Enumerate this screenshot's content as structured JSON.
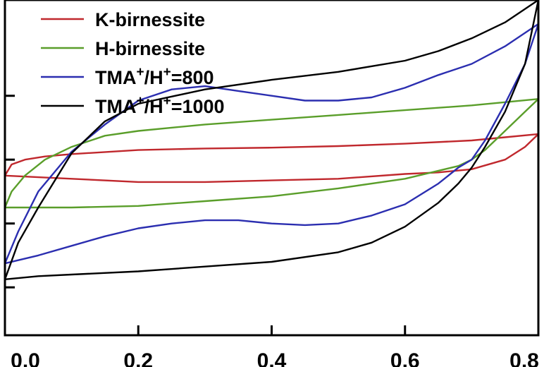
{
  "chart_data": {
    "type": "line",
    "title": "",
    "xlabel": "",
    "ylabel": "",
    "xlim": [
      0.0,
      0.8
    ],
    "ylim": [
      -1.1,
      1.0
    ],
    "x_ticks": [
      0.0,
      0.2,
      0.4,
      0.6,
      0.8
    ],
    "x_tick_labels": [
      "0.0",
      "0.2",
      "0.4",
      "0.6",
      "0.8"
    ],
    "y_ticks": [
      -0.8,
      -0.4,
      0.0,
      0.4
    ],
    "grid": false,
    "legend_position": "top-left",
    "series": [
      {
        "name": "K-birnessite",
        "name_parts": [
          "K-birnessite"
        ],
        "color": "#c0282d",
        "upper": [
          [
            0.0,
            -0.1
          ],
          [
            0.01,
            -0.03
          ],
          [
            0.03,
            0.0
          ],
          [
            0.06,
            0.02
          ],
          [
            0.1,
            0.035
          ],
          [
            0.2,
            0.06
          ],
          [
            0.3,
            0.07
          ],
          [
            0.4,
            0.075
          ],
          [
            0.5,
            0.085
          ],
          [
            0.6,
            0.1
          ],
          [
            0.7,
            0.12
          ],
          [
            0.75,
            0.14
          ],
          [
            0.8,
            0.16
          ]
        ],
        "lower": [
          [
            0.8,
            0.16
          ],
          [
            0.78,
            0.08
          ],
          [
            0.75,
            0.0
          ],
          [
            0.7,
            -0.06
          ],
          [
            0.65,
            -0.08
          ],
          [
            0.6,
            -0.09
          ],
          [
            0.5,
            -0.12
          ],
          [
            0.4,
            -0.13
          ],
          [
            0.3,
            -0.14
          ],
          [
            0.2,
            -0.14
          ],
          [
            0.1,
            -0.12
          ],
          [
            0.05,
            -0.11
          ],
          [
            0.0,
            -0.1
          ]
        ]
      },
      {
        "name": "H-birnessite",
        "name_parts": [
          "H-birnessite"
        ],
        "color": "#5a9e2a",
        "upper": [
          [
            0.0,
            -0.3
          ],
          [
            0.01,
            -0.2
          ],
          [
            0.03,
            -0.1
          ],
          [
            0.06,
            0.0
          ],
          [
            0.1,
            0.08
          ],
          [
            0.15,
            0.15
          ],
          [
            0.2,
            0.18
          ],
          [
            0.3,
            0.22
          ],
          [
            0.4,
            0.25
          ],
          [
            0.5,
            0.28
          ],
          [
            0.6,
            0.31
          ],
          [
            0.7,
            0.34
          ],
          [
            0.75,
            0.36
          ],
          [
            0.8,
            0.38
          ]
        ],
        "lower": [
          [
            0.8,
            0.38
          ],
          [
            0.78,
            0.3
          ],
          [
            0.75,
            0.18
          ],
          [
            0.72,
            0.06
          ],
          [
            0.7,
            0.0
          ],
          [
            0.68,
            -0.04
          ],
          [
            0.6,
            -0.12
          ],
          [
            0.5,
            -0.18
          ],
          [
            0.4,
            -0.23
          ],
          [
            0.3,
            -0.26
          ],
          [
            0.2,
            -0.29
          ],
          [
            0.1,
            -0.3
          ],
          [
            0.05,
            -0.3
          ],
          [
            0.0,
            -0.3
          ]
        ]
      },
      {
        "name": "TMA+/H+=800",
        "name_parts": [
          "TMA",
          "+",
          "/H",
          "+",
          "=800"
        ],
        "color": "#2b2eb0",
        "upper": [
          [
            0.0,
            -0.65
          ],
          [
            0.02,
            -0.45
          ],
          [
            0.05,
            -0.2
          ],
          [
            0.1,
            0.05
          ],
          [
            0.15,
            0.22
          ],
          [
            0.2,
            0.37
          ],
          [
            0.25,
            0.44
          ],
          [
            0.3,
            0.46
          ],
          [
            0.35,
            0.43
          ],
          [
            0.4,
            0.4
          ],
          [
            0.45,
            0.37
          ],
          [
            0.5,
            0.37
          ],
          [
            0.55,
            0.39
          ],
          [
            0.6,
            0.45
          ],
          [
            0.65,
            0.53
          ],
          [
            0.7,
            0.6
          ],
          [
            0.75,
            0.71
          ],
          [
            0.8,
            0.85
          ]
        ],
        "lower": [
          [
            0.8,
            0.85
          ],
          [
            0.78,
            0.6
          ],
          [
            0.75,
            0.35
          ],
          [
            0.72,
            0.12
          ],
          [
            0.7,
            0.0
          ],
          [
            0.68,
            -0.05
          ],
          [
            0.65,
            -0.15
          ],
          [
            0.6,
            -0.28
          ],
          [
            0.55,
            -0.35
          ],
          [
            0.5,
            -0.4
          ],
          [
            0.45,
            -0.41
          ],
          [
            0.4,
            -0.4
          ],
          [
            0.35,
            -0.38
          ],
          [
            0.3,
            -0.38
          ],
          [
            0.25,
            -0.4
          ],
          [
            0.2,
            -0.43
          ],
          [
            0.15,
            -0.48
          ],
          [
            0.1,
            -0.54
          ],
          [
            0.05,
            -0.6
          ],
          [
            0.0,
            -0.65
          ]
        ]
      },
      {
        "name": "TMA+/H+=1000",
        "name_parts": [
          "TMA",
          "+",
          "/H",
          "+",
          "=1000"
        ],
        "color": "#000000",
        "upper": [
          [
            0.0,
            -0.75
          ],
          [
            0.02,
            -0.52
          ],
          [
            0.05,
            -0.3
          ],
          [
            0.1,
            0.04
          ],
          [
            0.15,
            0.24
          ],
          [
            0.2,
            0.35
          ],
          [
            0.3,
            0.44
          ],
          [
            0.4,
            0.5
          ],
          [
            0.5,
            0.55
          ],
          [
            0.6,
            0.62
          ],
          [
            0.65,
            0.68
          ],
          [
            0.7,
            0.76
          ],
          [
            0.75,
            0.86
          ],
          [
            0.8,
            1.0
          ]
        ],
        "lower": [
          [
            0.8,
            1.0
          ],
          [
            0.78,
            0.6
          ],
          [
            0.75,
            0.3
          ],
          [
            0.72,
            0.08
          ],
          [
            0.7,
            -0.05
          ],
          [
            0.68,
            -0.15
          ],
          [
            0.65,
            -0.27
          ],
          [
            0.6,
            -0.42
          ],
          [
            0.55,
            -0.52
          ],
          [
            0.5,
            -0.58
          ],
          [
            0.4,
            -0.64
          ],
          [
            0.3,
            -0.67
          ],
          [
            0.2,
            -0.7
          ],
          [
            0.1,
            -0.72
          ],
          [
            0.05,
            -0.73
          ],
          [
            0.0,
            -0.75
          ]
        ]
      }
    ]
  }
}
